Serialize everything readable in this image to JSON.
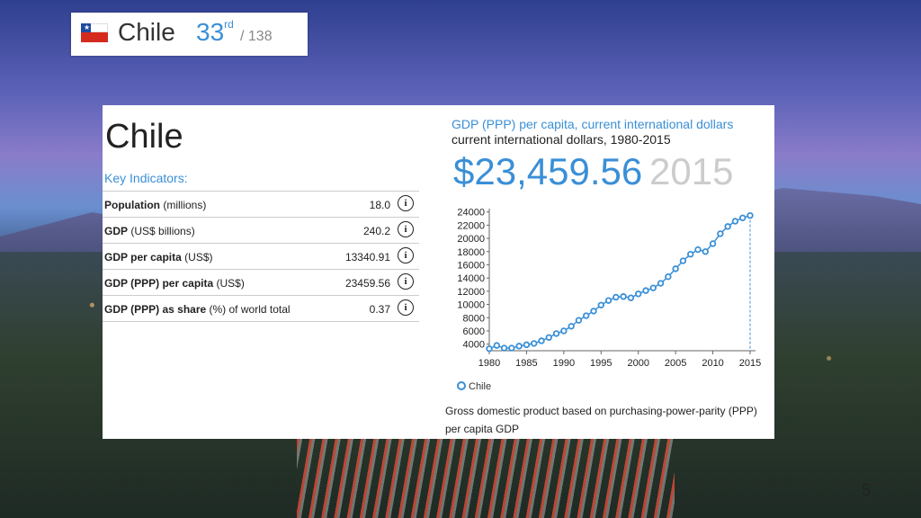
{
  "header": {
    "country": "Chile",
    "rank": "33",
    "rank_suffix": "rd",
    "rank_total": "/ 138"
  },
  "panel": {
    "title": "Chile",
    "key_indicators_label": "Key Indicators:",
    "indicators": [
      {
        "name": "Population",
        "unit": "(millions)",
        "value": "18.0"
      },
      {
        "name": "GDP",
        "unit": "(US$ billions)",
        "value": "240.2"
      },
      {
        "name": "GDP per capita",
        "unit": "(US$)",
        "value": "13340.91"
      },
      {
        "name": "GDP (PPP) per capita",
        "unit": "(US$)",
        "value": "23459.56"
      },
      {
        "name": "GDP (PPP) as share",
        "unit": "(%) of world total",
        "value": "0.37"
      }
    ],
    "info_glyph": "i"
  },
  "gdp": {
    "title": "GDP (PPP) per capita, current international dollars",
    "subtitle": "current international dollars, 1980-2015",
    "big_value": "$23,459.56",
    "big_year": "2015",
    "description": "Gross domestic product based on purchasing-power-parity (PPP) per capita GDP"
  },
  "chart_data": {
    "type": "line",
    "title": "GDP (PPP) per capita, current international dollars",
    "x": [
      1980,
      1981,
      1982,
      1983,
      1984,
      1985,
      1986,
      1987,
      1988,
      1989,
      1990,
      1991,
      1992,
      1993,
      1994,
      1995,
      1996,
      1997,
      1998,
      1999,
      2000,
      2001,
      2002,
      2003,
      2004,
      2005,
      2006,
      2007,
      2008,
      2009,
      2010,
      2011,
      2012,
      2013,
      2014,
      2015
    ],
    "series": [
      {
        "name": "Chile",
        "values": [
          3300,
          3800,
          3400,
          3400,
          3700,
          3900,
          4100,
          4500,
          5000,
          5600,
          6000,
          6700,
          7600,
          8300,
          9000,
          9900,
          10600,
          11100,
          11200,
          11000,
          11600,
          12100,
          12500,
          13200,
          14200,
          15400,
          16600,
          17600,
          18300,
          18000,
          19200,
          20700,
          21800,
          22600,
          23100,
          23459.56
        ]
      }
    ],
    "xticks": [
      1980,
      1985,
      1990,
      1995,
      2000,
      2005,
      2010,
      2015
    ],
    "yticks": [
      4000,
      6000,
      8000,
      10000,
      12000,
      14000,
      16000,
      18000,
      20000,
      22000,
      24000
    ],
    "xlim": [
      1980,
      2015
    ],
    "ylim": [
      3000,
      24500
    ],
    "legend": "bottom-left",
    "marker_year": 2015,
    "color": "#3a8fd6"
  },
  "slide": {
    "page_number": "5"
  }
}
